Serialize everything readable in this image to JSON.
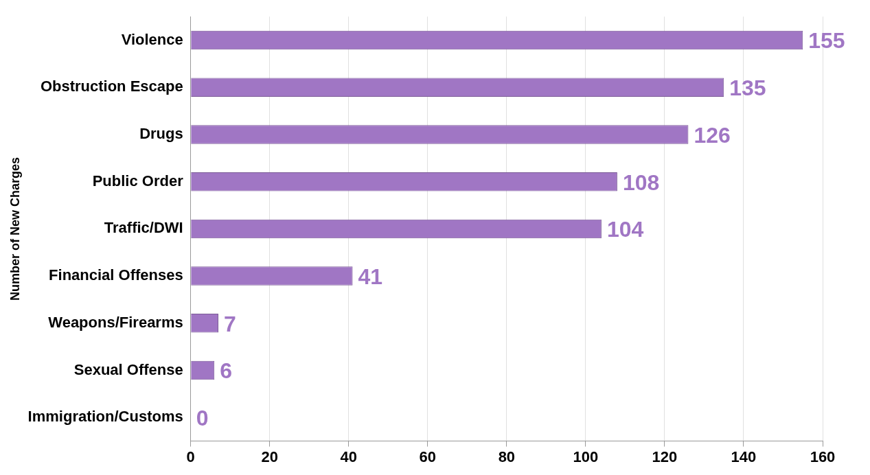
{
  "chart_data": {
    "type": "bar",
    "orientation": "horizontal",
    "ylabel": "Number of New Charges",
    "categories": [
      "Violence",
      "Obstruction Escape",
      "Drugs",
      "Public Order",
      "Traffic/DWI",
      "Financial Offenses",
      "Weapons/Firearms",
      "Sexual Offense",
      "Immigration/Customs"
    ],
    "values": [
      155,
      135,
      126,
      108,
      104,
      41,
      7,
      6,
      0
    ],
    "color": "#a076c4",
    "xlim": [
      0,
      160
    ],
    "xticks": [
      0,
      20,
      40,
      60,
      80,
      100,
      120,
      140,
      160
    ],
    "grid": "x",
    "legend": false,
    "data_labels": true
  }
}
